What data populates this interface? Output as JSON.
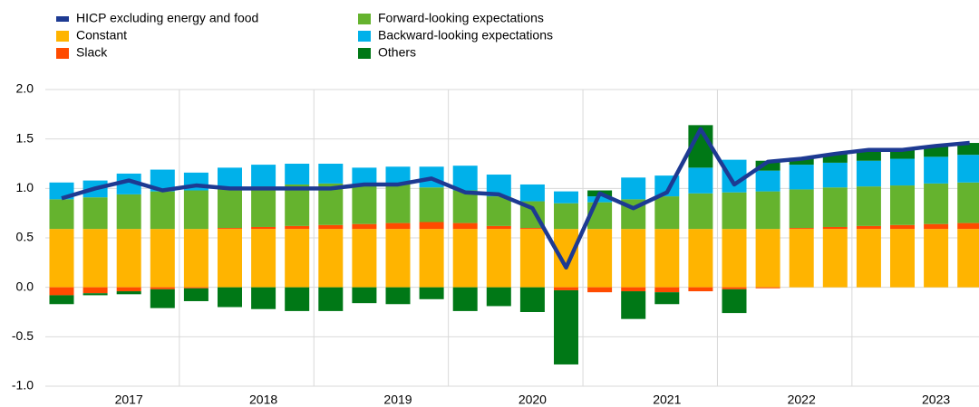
{
  "chart_data": {
    "type": "bar",
    "stacked": true,
    "categories": [
      null,
      null,
      "2017",
      null,
      null,
      null,
      "2018",
      null,
      null,
      null,
      "2019",
      null,
      null,
      null,
      "2020",
      null,
      null,
      null,
      "2021",
      null,
      null,
      null,
      "2022",
      null,
      null,
      null,
      "2023",
      null
    ],
    "ylim": [
      -1.0,
      2.0
    ],
    "yticks": [
      {
        "value": -1.0,
        "label": "-1.0"
      },
      {
        "value": -0.5,
        "label": "-0.5"
      },
      {
        "value": 0,
        "label": "0.0"
      },
      {
        "value": 0.5,
        "label": "0.5"
      },
      {
        "value": 1.0,
        "label": "1.0"
      },
      {
        "value": 1.5,
        "label": "1.5"
      },
      {
        "value": 2.0,
        "label": "2.0"
      }
    ],
    "grid": true,
    "series": [
      {
        "name": "HICP excluding energy and food",
        "type": "line",
        "color": "#1d3a92",
        "values": [
          0.9,
          1.0,
          1.08,
          0.98,
          1.03,
          1.0,
          1.0,
          1.0,
          1.0,
          1.04,
          1.04,
          1.1,
          0.96,
          0.94,
          0.8,
          0.2,
          0.95,
          0.8,
          0.96,
          1.6,
          1.04,
          1.27,
          1.3,
          1.35,
          1.39,
          1.39,
          1.43,
          1.46
        ]
      },
      {
        "name": "Constant",
        "color": "#ffb400",
        "values": [
          0.59,
          0.59,
          0.59,
          0.59,
          0.59,
          0.59,
          0.59,
          0.59,
          0.59,
          0.59,
          0.59,
          0.59,
          0.59,
          0.59,
          0.59,
          0.59,
          0.59,
          0.59,
          0.59,
          0.59,
          0.59,
          0.59,
          0.59,
          0.59,
          0.59,
          0.59,
          0.59,
          0.59
        ]
      },
      {
        "name": "Slack",
        "color": "#ff4b00",
        "values": [
          -0.08,
          -0.06,
          -0.04,
          -0.02,
          -0.01,
          0.01,
          0.02,
          0.03,
          0.04,
          0.05,
          0.06,
          0.07,
          0.06,
          0.03,
          0.01,
          -0.03,
          -0.05,
          -0.04,
          -0.05,
          -0.04,
          -0.02,
          -0.01,
          0.01,
          0.02,
          0.03,
          0.04,
          0.05,
          0.06
        ]
      },
      {
        "name": "Forward-looking expectations",
        "color": "#65b32e",
        "values": [
          0.3,
          0.32,
          0.35,
          0.38,
          0.39,
          0.4,
          0.41,
          0.42,
          0.42,
          0.4,
          0.4,
          0.35,
          0.33,
          0.3,
          0.27,
          0.26,
          0.27,
          0.3,
          0.33,
          0.36,
          0.37,
          0.38,
          0.39,
          0.4,
          0.4,
          0.4,
          0.41,
          0.41
        ]
      },
      {
        "name": "Backward-looking expectations",
        "color": "#00b1ea",
        "values": [
          0.17,
          0.17,
          0.21,
          0.22,
          0.18,
          0.21,
          0.22,
          0.21,
          0.2,
          0.17,
          0.17,
          0.21,
          0.25,
          0.22,
          0.17,
          0.12,
          0.06,
          0.22,
          0.21,
          0.26,
          0.33,
          0.21,
          0.25,
          0.25,
          0.26,
          0.27,
          0.27,
          0.28
        ]
      },
      {
        "name": "Others",
        "color": "#007816",
        "values": [
          -0.09,
          -0.02,
          -0.03,
          -0.19,
          -0.13,
          -0.2,
          -0.22,
          -0.24,
          -0.24,
          -0.16,
          -0.17,
          -0.12,
          -0.24,
          -0.19,
          -0.25,
          -0.75,
          0.06,
          -0.28,
          -0.12,
          0.43,
          -0.24,
          0.1,
          0.07,
          0.09,
          0.1,
          0.1,
          0.11,
          0.12
        ]
      }
    ]
  }
}
